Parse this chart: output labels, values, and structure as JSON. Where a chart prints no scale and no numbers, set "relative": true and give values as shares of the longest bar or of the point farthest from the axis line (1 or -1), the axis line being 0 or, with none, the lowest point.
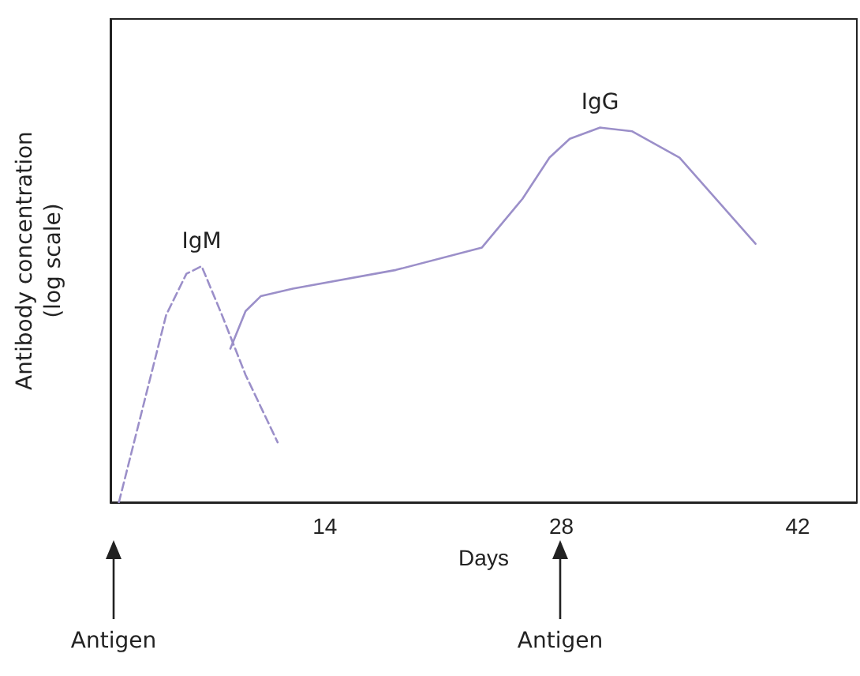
{
  "chart_data": {
    "type": "line",
    "xlabel": "Days",
    "ylabel": "Antibody concentration (log scale)",
    "relative": true,
    "xlim": [
      1.3,
      45.5
    ],
    "xticks": [
      14,
      28,
      42
    ],
    "grid": false,
    "marker": "none",
    "series": [
      {
        "line_style": "dashed",
        "color": "#9b8fc9",
        "x": [
          1.8,
          3.2,
          4.6,
          5.8,
          6.7,
          7.9,
          9.3,
          11.2
        ],
        "values": [
          0,
          0.25,
          0.5,
          0.61,
          0.63,
          0.5,
          0.34,
          0.16
        ]
      },
      {
        "line_style": "solid",
        "color": "#9b8fc9",
        "x": [
          8.4,
          9.3,
          10.2,
          12.1,
          18.2,
          23.3,
          25.7,
          27.3,
          28.5,
          30.3,
          32.2,
          35,
          39.5
        ],
        "values": [
          0.41,
          0.51,
          0.55,
          0.57,
          0.62,
          0.68,
          0.81,
          0.92,
          0.97,
          1,
          0.99,
          0.92,
          0.69
        ]
      }
    ],
    "annotations": [
      {
        "text": "IgM",
        "x": 6.7,
        "y": 0.63
      },
      {
        "text": "IgG",
        "x": 30.3,
        "y": 1
      },
      "Antigen",
      "Antigen"
    ]
  }
}
